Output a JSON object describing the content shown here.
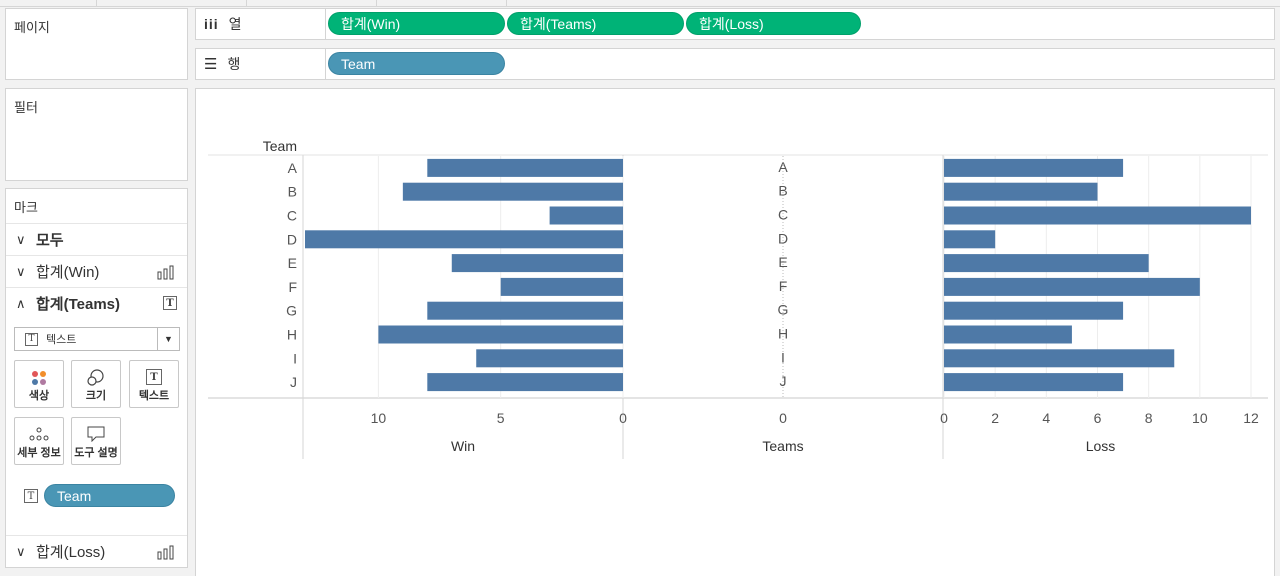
{
  "panes": {
    "pages": "페이지",
    "filters": "필터",
    "marks": "마크"
  },
  "shelves": {
    "columns_label": "열",
    "rows_label": "행",
    "columns": [
      "합계(Win)",
      "합계(Teams)",
      "합계(Loss)"
    ],
    "rows": [
      "Team"
    ]
  },
  "marks": {
    "all": "모두",
    "win": "합계(Win)",
    "teams": "합계(Teams)",
    "loss": "합계(Loss)",
    "mark_type": "텍스트",
    "buttons": {
      "color": "색상",
      "size": "크기",
      "text": "텍스트",
      "detail": "세부 정보",
      "tooltip": "도구 설명"
    },
    "field_pill": "Team"
  },
  "chart_data": {
    "type": "bar",
    "row_header": "Team",
    "categories": [
      "A",
      "B",
      "C",
      "D",
      "E",
      "F",
      "G",
      "H",
      "I",
      "J"
    ],
    "series": [
      {
        "name": "Win",
        "values": [
          8,
          9,
          3,
          13,
          7,
          5,
          8,
          10,
          6,
          8
        ],
        "xlim": [
          13,
          0
        ],
        "ticks": [
          10,
          5,
          0
        ],
        "orientation": "reversed"
      },
      {
        "name": "Teams",
        "values": [
          0,
          0,
          0,
          0,
          0,
          0,
          0,
          0,
          0,
          0
        ],
        "ticks": [
          0
        ]
      },
      {
        "name": "Loss",
        "values": [
          7,
          6,
          12,
          2,
          8,
          10,
          7,
          5,
          9,
          7
        ],
        "xlim": [
          0,
          12
        ],
        "ticks": [
          0,
          2,
          4,
          6,
          8,
          10,
          12
        ]
      }
    ],
    "bar_color": "#4e79a7",
    "grid": true
  }
}
